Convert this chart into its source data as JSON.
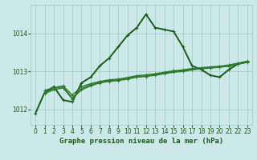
{
  "title": "Graphe pression niveau de la mer (hPa)",
  "background_color": "#cce8e8",
  "grid_color": "#99cccc",
  "line_color_dark": "#1a5c1a",
  "line_color_mid": "#2d7a2d",
  "xlim": [
    -0.5,
    23.5
  ],
  "ylim": [
    1011.6,
    1014.75
  ],
  "yticks": [
    1012,
    1013,
    1014
  ],
  "xticks": [
    0,
    1,
    2,
    3,
    4,
    5,
    6,
    7,
    8,
    9,
    10,
    11,
    12,
    13,
    14,
    15,
    16,
    17,
    18,
    19,
    20,
    21,
    22,
    23
  ],
  "series": [
    {
      "x": [
        0,
        1,
        2,
        3,
        4,
        5,
        6,
        7,
        8,
        9,
        10,
        11,
        12,
        13,
        14,
        15,
        16,
        17,
        18,
        19,
        20,
        21,
        22,
        23
      ],
      "y": [
        1011.9,
        1012.45,
        1012.6,
        1012.25,
        1012.2,
        1012.7,
        1012.85,
        1013.15,
        1013.35,
        1013.65,
        1013.95,
        1014.15,
        1014.5,
        1014.15,
        1014.1,
        1014.05,
        1013.65,
        1013.15,
        1013.05,
        1012.9,
        1012.85,
        1013.05,
        1013.2,
        1013.25
      ],
      "lw": 1.4,
      "marker": "+"
    },
    {
      "x": [
        1,
        2,
        3,
        4,
        5,
        6,
        7,
        8,
        9,
        10,
        11,
        12,
        13,
        14,
        15,
        16,
        17,
        18,
        19,
        20,
        21,
        22,
        23
      ],
      "y": [
        1012.45,
        1012.55,
        1012.6,
        1012.3,
        1012.55,
        1012.65,
        1012.72,
        1012.76,
        1012.78,
        1012.82,
        1012.87,
        1012.88,
        1012.92,
        1012.96,
        1013.0,
        1013.02,
        1013.06,
        1013.08,
        1013.1,
        1013.12,
        1013.15,
        1013.2,
        1013.25
      ],
      "lw": 1.0,
      "marker": "+"
    },
    {
      "x": [
        1,
        2,
        3,
        4,
        5,
        6,
        7,
        8,
        9,
        10,
        11,
        12,
        13,
        14,
        15,
        16,
        17,
        18,
        19,
        20,
        21,
        22,
        23
      ],
      "y": [
        1012.5,
        1012.58,
        1012.62,
        1012.38,
        1012.6,
        1012.68,
        1012.74,
        1012.78,
        1012.8,
        1012.84,
        1012.89,
        1012.91,
        1012.94,
        1012.98,
        1013.02,
        1013.04,
        1013.08,
        1013.1,
        1013.12,
        1013.14,
        1013.17,
        1013.22,
        1013.27
      ],
      "lw": 1.0,
      "marker": "+"
    },
    {
      "x": [
        1,
        2,
        3,
        4,
        5,
        6,
        7,
        8,
        9,
        10,
        11,
        12,
        13,
        14,
        15,
        16,
        17,
        18,
        19,
        20,
        21,
        22,
        23
      ],
      "y": [
        1012.42,
        1012.52,
        1012.57,
        1012.28,
        1012.52,
        1012.62,
        1012.7,
        1012.74,
        1012.76,
        1012.8,
        1012.85,
        1012.87,
        1012.9,
        1012.94,
        1012.98,
        1013.0,
        1013.04,
        1013.07,
        1013.09,
        1013.11,
        1013.14,
        1013.19,
        1013.24
      ],
      "lw": 1.0,
      "marker": "+"
    }
  ],
  "label_fontsize": 6.5,
  "tick_fontsize": 5.5,
  "title_fontsize": 6.5
}
